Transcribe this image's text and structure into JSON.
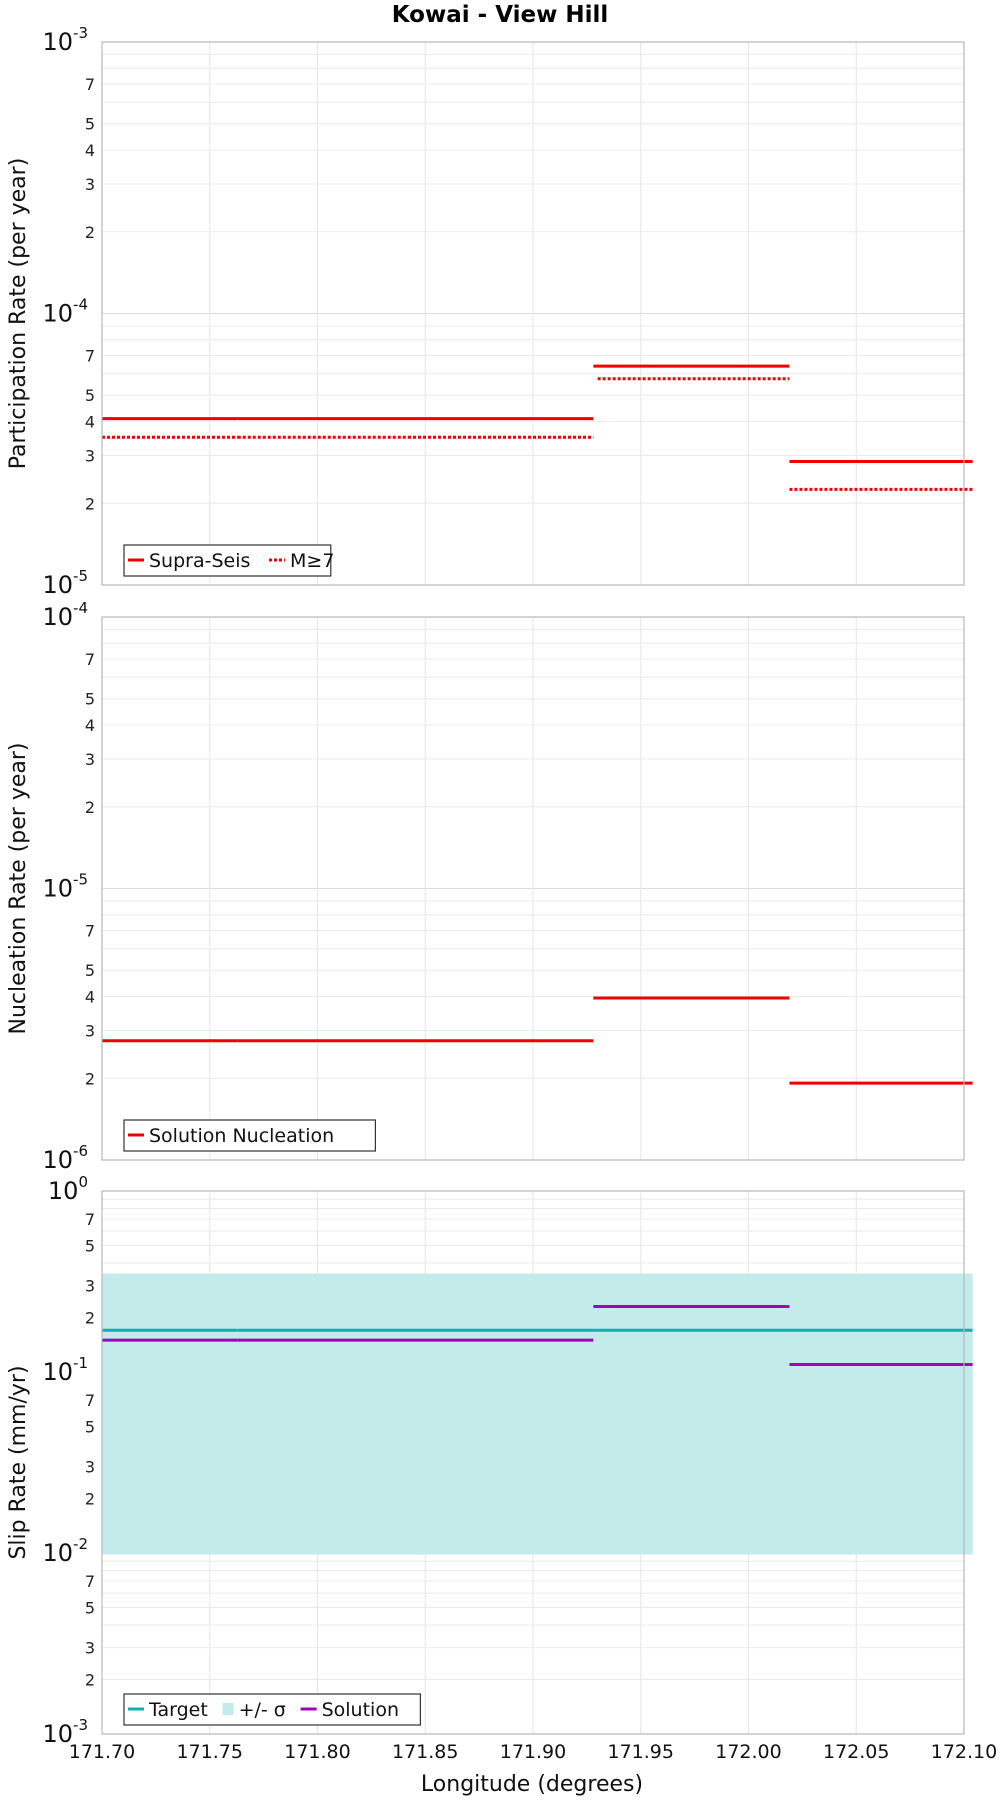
{
  "title": "Kowai - View Hill",
  "xlabel": "Longitude (degrees)",
  "xlim": [
    171.7,
    172.1
  ],
  "xticks": [
    "171.70",
    "171.75",
    "171.80",
    "171.85",
    "171.90",
    "171.95",
    "172.00",
    "172.05",
    "172.10"
  ],
  "colors": {
    "red": "#ee0000",
    "teal": "#11b0b0",
    "band": "#c2ebea",
    "purple": "#a000bb"
  },
  "chart_data": [
    {
      "type": "line",
      "scale": "log",
      "ylabel": "Participation Rate (per year)",
      "ylim": [
        1e-05,
        0.001
      ],
      "series": [
        {
          "name": "Supra-Seis",
          "style": "solid",
          "segments": [
            [
              171.7,
              171.763,
              4.1e-05
            ],
            [
              171.763,
              171.842,
              4.1e-05
            ],
            [
              171.842,
              171.928,
              4.1e-05
            ],
            [
              171.928,
              172.019,
              6.4e-05
            ],
            [
              172.019,
              172.104,
              2.85e-05
            ]
          ]
        },
        {
          "name": "M≥7",
          "style": "dotted",
          "segments": [
            [
              171.7,
              171.763,
              3.5e-05
            ],
            [
              171.763,
              171.842,
              3.5e-05
            ],
            [
              171.842,
              171.928,
              3.5e-05
            ],
            [
              171.93,
              172.019,
              5.75e-05
            ],
            [
              172.019,
              172.104,
              2.25e-05
            ]
          ]
        }
      ],
      "legend": [
        "Supra-Seis",
        "M≥7"
      ]
    },
    {
      "type": "line",
      "scale": "log",
      "ylabel": "Nucleation Rate (per year)",
      "ylim": [
        1e-06,
        0.0001
      ],
      "series": [
        {
          "name": "Solution Nucleation",
          "style": "solid",
          "segments": [
            [
              171.7,
              171.763,
              2.75e-06
            ],
            [
              171.763,
              171.842,
              2.75e-06
            ],
            [
              171.842,
              171.928,
              2.75e-06
            ],
            [
              171.928,
              172.019,
              3.95e-06
            ],
            [
              172.019,
              172.104,
              1.92e-06
            ]
          ]
        }
      ],
      "legend": [
        "Solution Nucleation"
      ]
    },
    {
      "type": "line",
      "scale": "log",
      "ylabel": "Slip Rate (mm/yr)",
      "ylim": [
        0.001,
        1
      ],
      "band": {
        "name": "+/- σ",
        "xrange": [
          171.7,
          172.104
        ],
        "low": 0.0098,
        "high": 0.35
      },
      "series": [
        {
          "name": "Target",
          "style": "solid",
          "segments": [
            [
              171.7,
              171.763,
              0.17
            ],
            [
              171.763,
              171.842,
              0.17
            ],
            [
              171.842,
              171.928,
              0.17
            ],
            [
              171.928,
              172.019,
              0.17
            ],
            [
              172.019,
              172.104,
              0.17
            ]
          ]
        },
        {
          "name": "Solution",
          "style": "solid",
          "segments": [
            [
              171.7,
              171.763,
              0.15
            ],
            [
              171.763,
              171.842,
              0.15
            ],
            [
              171.842,
              171.928,
              0.15
            ],
            [
              171.928,
              172.019,
              0.23
            ],
            [
              172.019,
              172.104,
              0.11
            ]
          ]
        }
      ],
      "legend": [
        "Target",
        "+/- σ",
        "Solution"
      ]
    }
  ]
}
